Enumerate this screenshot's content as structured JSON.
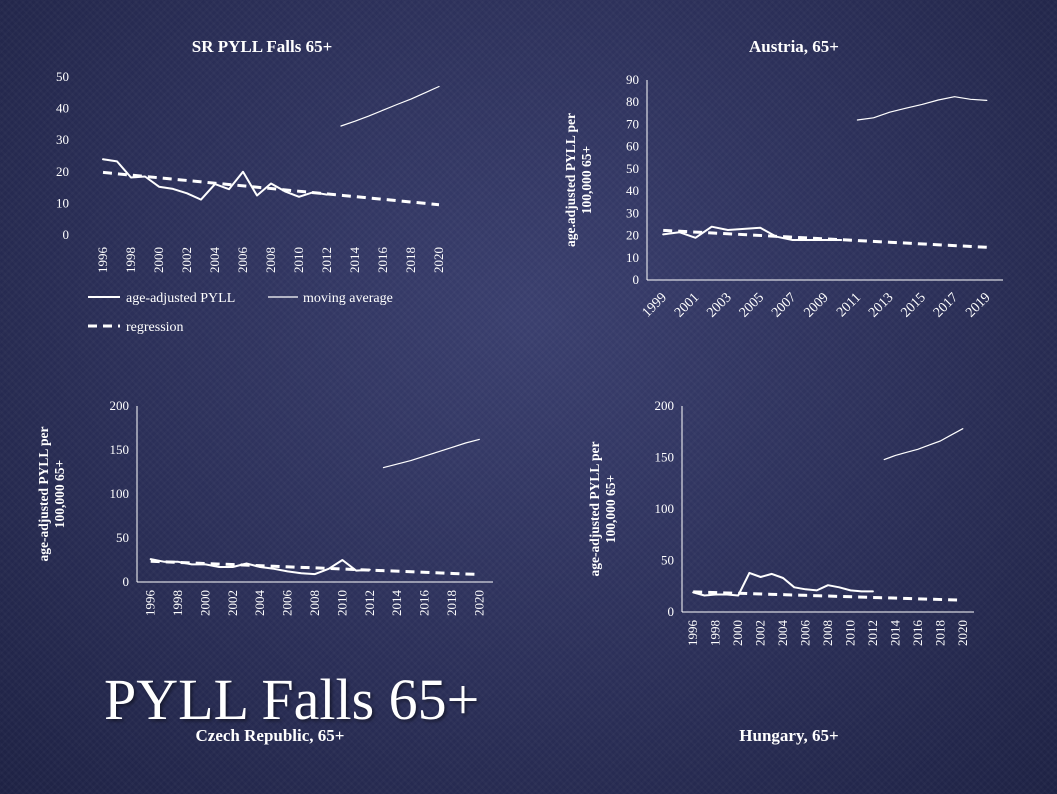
{
  "slide": {
    "title": "PYLL Falls 65+",
    "background_color": "#2b2f58",
    "line_color": "#ffffff"
  },
  "chart_data": [
    {
      "type": "line",
      "title": "SR PYLL Falls 65+",
      "ylabel": "",
      "xlabel": "",
      "ylim": [
        0,
        50
      ],
      "yticks": [
        0,
        10,
        20,
        30,
        40,
        50
      ],
      "xticks": [
        "1996",
        "1998",
        "2000",
        "2002",
        "2004",
        "2006",
        "2008",
        "2010",
        "2012",
        "2014",
        "2016",
        "2018",
        "2020"
      ],
      "x_label_rotation": "vertical",
      "legend": [
        "age-adjusted PYLL",
        "moving average",
        "regression"
      ],
      "legend_position": "bottom",
      "grid": false,
      "series": [
        {
          "name": "age-adjusted PYLL",
          "style": "solid",
          "x": [
            1996,
            1997,
            1998,
            1999,
            2000,
            2001,
            2002,
            2003,
            2004,
            2005,
            2006,
            2007,
            2008,
            2009,
            2010,
            2011,
            2012
          ],
          "y": [
            24,
            23.3,
            18.2,
            18.5,
            15.3,
            14.6,
            13.2,
            11.2,
            16.1,
            14.5,
            20,
            12.5,
            16.3,
            13.8,
            12.1,
            13.5,
            12.8
          ]
        },
        {
          "name": "moving average",
          "style": "thin",
          "x": [
            2013,
            2014,
            2015,
            2016,
            2017,
            2018,
            2019,
            2020
          ],
          "y": [
            34.5,
            36,
            37.7,
            39.5,
            41.3,
            43,
            45,
            47
          ]
        },
        {
          "name": "regression",
          "style": "dashed",
          "x": [
            1996,
            2020
          ],
          "y": [
            19.8,
            9.6
          ]
        }
      ]
    },
    {
      "type": "line",
      "title": "Austria, 65+",
      "ylabel": "age.adjusted PYLL per 100,000 65+",
      "xlabel": "",
      "ylim": [
        0,
        90
      ],
      "yticks": [
        0,
        10,
        20,
        30,
        40,
        50,
        60,
        70,
        80,
        90
      ],
      "xticks": [
        "1999",
        "2001",
        "2003",
        "2005",
        "2007",
        "2009",
        "2011",
        "2013",
        "2015",
        "2017",
        "2019"
      ],
      "x_label_rotation": "diagonal",
      "grid": false,
      "series": [
        {
          "name": "age-adjusted PYLL",
          "style": "solid",
          "x": [
            1999,
            2000,
            2001,
            2002,
            2003,
            2004,
            2005,
            2006,
            2007,
            2008,
            2009,
            2010
          ],
          "y": [
            20.5,
            21.5,
            19,
            24,
            22.5,
            23,
            23.5,
            19.5,
            18,
            18,
            18,
            18
          ]
        },
        {
          "name": "moving average",
          "style": "thin",
          "x": [
            2011,
            2012,
            2013,
            2014,
            2015,
            2016,
            2017,
            2018,
            2019
          ],
          "y": [
            72,
            73,
            75.5,
            77.3,
            79,
            81,
            82.5,
            81.3,
            80.8
          ]
        },
        {
          "name": "regression",
          "style": "dashed",
          "x": [
            1999,
            2019
          ],
          "y": [
            22.3,
            14.7
          ]
        }
      ]
    },
    {
      "type": "line",
      "title": "Czech Republic, 65+",
      "ylabel": "age-adjusted PYLL per 100,000 65+",
      "xlabel": "",
      "ylim": [
        0,
        200
      ],
      "yticks": [
        0,
        50,
        100,
        150,
        200
      ],
      "xticks": [
        "1996",
        "1998",
        "2000",
        "2002",
        "2004",
        "2006",
        "2008",
        "2010",
        "2012",
        "2014",
        "2016",
        "2018",
        "2020"
      ],
      "x_label_rotation": "vertical",
      "grid": false,
      "series": [
        {
          "name": "age-adjusted PYLL",
          "style": "solid",
          "x": [
            1996,
            1997,
            1998,
            1999,
            2000,
            2001,
            2002,
            2003,
            2004,
            2005,
            2006,
            2007,
            2008,
            2009,
            2010,
            2011,
            2012
          ],
          "y": [
            26,
            23,
            23,
            20,
            20,
            17,
            17,
            21,
            17,
            15,
            12,
            10,
            9,
            15,
            25,
            13,
            14
          ]
        },
        {
          "name": "moving average",
          "style": "thin",
          "x": [
            2013,
            2014,
            2015,
            2016,
            2017,
            2018,
            2019,
            2020
          ],
          "y": [
            130,
            134,
            138,
            143,
            148,
            153,
            158,
            162
          ]
        },
        {
          "name": "regression",
          "style": "dashed",
          "x": [
            1996,
            2020
          ],
          "y": [
            23.5,
            8.5
          ]
        }
      ]
    },
    {
      "type": "line",
      "title": "Hungary, 65+",
      "ylabel": "age-adjusted PYLL per 100,000 65+",
      "xlabel": "",
      "ylim": [
        0,
        200
      ],
      "yticks": [
        0,
        50,
        100,
        150,
        200
      ],
      "xticks": [
        "1996",
        "1998",
        "2000",
        "2002",
        "2004",
        "2006",
        "2008",
        "2010",
        "2012",
        "2014",
        "2016",
        "2018",
        "2020"
      ],
      "x_label_rotation": "vertical",
      "grid": false,
      "series": [
        {
          "name": "age-adjusted PYLL",
          "style": "solid",
          "x": [
            1996,
            1997,
            1998,
            1999,
            2000,
            2001,
            2002,
            2003,
            2004,
            2005,
            2006,
            2007,
            2008,
            2009,
            2010,
            2011,
            2012
          ],
          "y": [
            19,
            16,
            17,
            17,
            16,
            38,
            34,
            37,
            33,
            24,
            22,
            21,
            26,
            24,
            21,
            20,
            20
          ]
        },
        {
          "name": "moving average",
          "style": "thin",
          "x": [
            2013,
            2014,
            2015,
            2016,
            2017,
            2018,
            2019,
            2020
          ],
          "y": [
            148,
            152,
            155,
            158,
            162,
            166,
            172,
            178
          ]
        },
        {
          "name": "regression",
          "style": "dashed",
          "x": [
            1996,
            2020
          ],
          "y": [
            19.5,
            11.5
          ]
        }
      ]
    }
  ]
}
